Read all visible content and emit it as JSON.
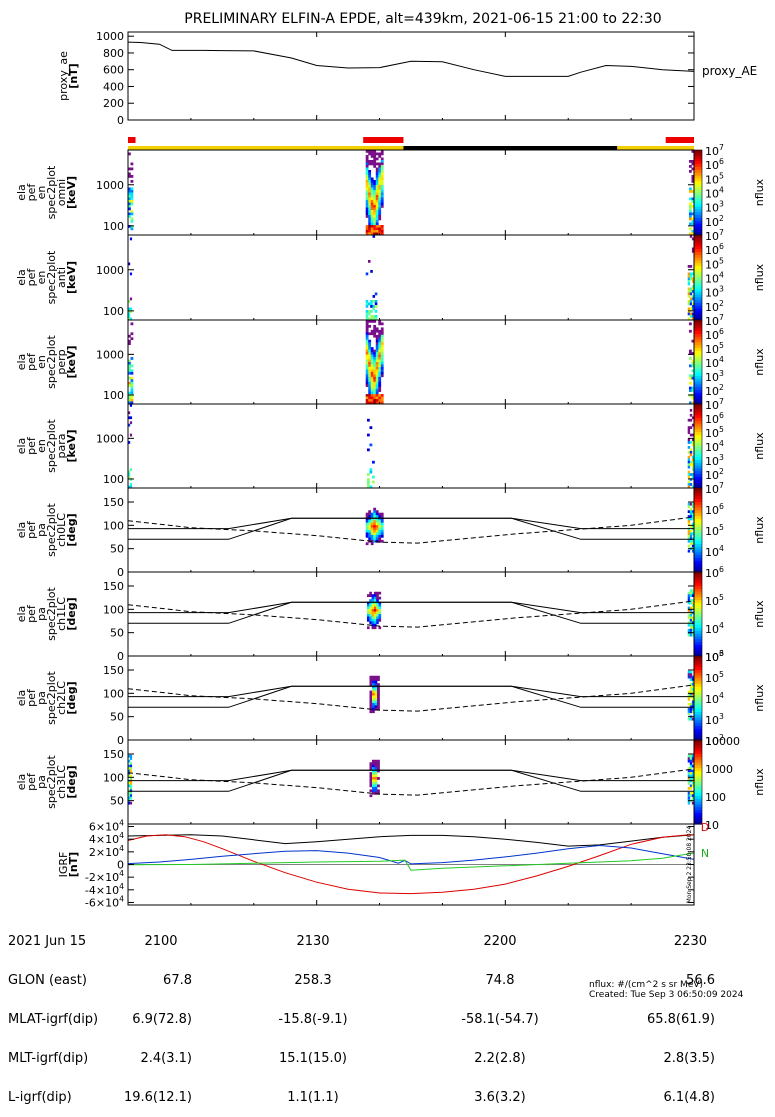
{
  "title": "PRELIMINARY ELFIN-A EPDE, alt=439km, 2021-06-15 21:00 to 22:30",
  "time_ticks": [
    0,
    30,
    60,
    90
  ],
  "chart_data": [
    {
      "type": "line",
      "ylabel": [
        "proxy_ae",
        "[nT]"
      ],
      "ylim": [
        0,
        1050
      ],
      "yticks": [
        "0",
        "200",
        "400",
        "600",
        "800",
        "1000"
      ],
      "ytick_values": [
        0,
        200,
        400,
        600,
        800,
        1000
      ],
      "legend": "proxy_AE",
      "series": [
        {
          "name": "proxy_AE",
          "color": "#000000",
          "x": [
            0,
            2,
            5,
            7,
            12,
            15,
            20,
            26,
            30,
            35,
            40,
            45,
            50,
            55,
            60,
            65,
            70,
            72,
            76,
            80,
            85,
            90
          ],
          "y": [
            930,
            925,
            905,
            830,
            830,
            828,
            825,
            740,
            650,
            620,
            625,
            700,
            695,
            600,
            520,
            520,
            520,
            570,
            650,
            640,
            600,
            580
          ]
        }
      ]
    },
    {
      "type": "strip",
      "series": [
        {
          "name": "red",
          "color": "#ee0000",
          "segments": [
            [
              0,
              1.2
            ],
            [
              37.4,
              43.8
            ],
            [
              85.5,
              90
            ]
          ]
        },
        {
          "name": "status",
          "segments": [
            {
              "color": "#f5d000",
              "range": [
                0,
                43.8
              ]
            },
            {
              "color": "#000000",
              "range": [
                43.8,
                77.8
              ]
            },
            {
              "color": "#f5d000",
              "range": [
                77.8,
                90
              ]
            }
          ]
        }
      ]
    },
    {
      "type": "heatmap",
      "ylabel": [
        "ela",
        "pef",
        "en",
        "spec2plot",
        "omni",
        "[keV]"
      ],
      "ylog": true,
      "ylim": [
        60,
        7000
      ],
      "yticks": [
        "100",
        "1000"
      ],
      "ytick_values": [
        100,
        1000
      ],
      "colorbar": {
        "label": "nflux",
        "log": true,
        "range": [
          10,
          10000000
        ],
        "ticks": [
          {
            "b": "10",
            "e": "7"
          },
          {
            "b": "10",
            "e": "6"
          },
          {
            "b": "10",
            "e": "5"
          },
          {
            "b": "10",
            "e": "4"
          },
          {
            "b": "10",
            "e": "3"
          },
          {
            "b": "10",
            "e": "2"
          }
        ]
      },
      "bursts": [
        {
          "x": [
            37.8,
            40.6
          ],
          "style": "energy"
        },
        {
          "x": [
            0,
            0.8
          ],
          "style": "energy-weak"
        },
        {
          "x": [
            89.2,
            90
          ],
          "style": "energy-weak"
        }
      ]
    },
    {
      "type": "heatmap",
      "ylabel": [
        "ela",
        "pef",
        "en",
        "spec2plot",
        "anti",
        "[keV]"
      ],
      "ylog": true,
      "ylim": [
        60,
        7000
      ],
      "yticks": [
        "100",
        "1000"
      ],
      "ytick_values": [
        100,
        1000
      ],
      "colorbar": {
        "label": "nflux",
        "log": true,
        "range": [
          10,
          10000000
        ],
        "ticks": [
          {
            "b": "10",
            "e": "7"
          },
          {
            "b": "10",
            "e": "6"
          },
          {
            "b": "10",
            "e": "5"
          },
          {
            "b": "10",
            "e": "4"
          },
          {
            "b": "10",
            "e": "3"
          },
          {
            "b": "10",
            "e": "2"
          }
        ]
      },
      "bursts": [
        {
          "x": [
            37.8,
            39.6
          ],
          "style": "sparse"
        },
        {
          "x": [
            0,
            0.6
          ],
          "style": "sparse"
        },
        {
          "x": [
            89.0,
            90
          ],
          "style": "energy-weak"
        }
      ]
    },
    {
      "type": "heatmap",
      "ylabel": [
        "ela",
        "pef",
        "en",
        "spec2plot",
        "perp",
        "[keV]"
      ],
      "ylog": true,
      "ylim": [
        60,
        7000
      ],
      "yticks": [
        "100",
        "1000"
      ],
      "ytick_values": [
        100,
        1000
      ],
      "colorbar": {
        "label": "nflux",
        "log": true,
        "range": [
          10,
          10000000
        ],
        "ticks": [
          {
            "b": "10",
            "e": "7"
          },
          {
            "b": "10",
            "e": "6"
          },
          {
            "b": "10",
            "e": "5"
          },
          {
            "b": "10",
            "e": "4"
          },
          {
            "b": "10",
            "e": "3"
          },
          {
            "b": "10",
            "e": "2"
          }
        ]
      },
      "bursts": [
        {
          "x": [
            37.8,
            40.6
          ],
          "style": "energy"
        },
        {
          "x": [
            0,
            0.8
          ],
          "style": "energy-weak"
        },
        {
          "x": [
            89.2,
            90
          ],
          "style": "energy-weak"
        }
      ]
    },
    {
      "type": "heatmap",
      "ylabel": [
        "ela",
        "pef",
        "en",
        "spec2plot",
        "para",
        "[keV]"
      ],
      "ylog": true,
      "ylim": [
        60,
        7000
      ],
      "yticks": [
        "100",
        "1000"
      ],
      "ytick_values": [
        100,
        1000
      ],
      "colorbar": {
        "label": "nflux",
        "log": true,
        "range": [
          10,
          10000000
        ],
        "ticks": [
          {
            "b": "10",
            "e": "7"
          },
          {
            "b": "10",
            "e": "6"
          },
          {
            "b": "10",
            "e": "5"
          },
          {
            "b": "10",
            "e": "4"
          },
          {
            "b": "10",
            "e": "3"
          },
          {
            "b": "10",
            "e": "2"
          }
        ]
      },
      "bursts": [
        {
          "x": [
            38.0,
            39.2
          ],
          "style": "sparse"
        },
        {
          "x": [
            0,
            0.6
          ],
          "style": "sparse"
        },
        {
          "x": [
            89.0,
            90
          ],
          "style": "energy-weak"
        }
      ]
    },
    {
      "type": "heatmap",
      "ylabel": [
        "ela",
        "pef",
        "pa",
        "spec2plot",
        "ch0LC",
        "[deg]"
      ],
      "ylim": [
        0,
        180
      ],
      "yticks": [
        "0",
        "50",
        "100",
        "150"
      ],
      "ytick_values": [
        0,
        50,
        100,
        150
      ],
      "colorbar": {
        "label": "nflux",
        "log": true,
        "range": [
          1000,
          10000000
        ],
        "ticks": [
          {
            "b": "10",
            "e": "7"
          },
          {
            "b": "10",
            "e": "6"
          },
          {
            "b": "10",
            "e": "5"
          },
          {
            "b": "10",
            "e": "4"
          }
        ]
      },
      "lines": "lc",
      "bursts": [
        {
          "x": [
            37.8,
            40.6
          ],
          "style": "pitch"
        },
        {
          "x": [
            89.0,
            90
          ],
          "style": "pitch-edge"
        }
      ]
    },
    {
      "type": "heatmap",
      "ylabel": [
        "ela",
        "pef",
        "pa",
        "spec2plot",
        "ch1LC",
        "[deg]"
      ],
      "ylim": [
        0,
        180
      ],
      "yticks": [
        "0",
        "50",
        "100",
        "150"
      ],
      "ytick_values": [
        0,
        50,
        100,
        150
      ],
      "colorbar": {
        "label": "nflux",
        "log": true,
        "range": [
          1000,
          1000000
        ],
        "ticks": [
          {
            "b": "10",
            "e": "6"
          },
          {
            "b": "10",
            "e": "5"
          },
          {
            "b": "10",
            "e": "4"
          },
          {
            "b": "10",
            "e": "3"
          }
        ]
      },
      "lines": "lc",
      "bursts": [
        {
          "x": [
            38.0,
            40.2
          ],
          "style": "pitch"
        },
        {
          "x": [
            89.0,
            90
          ],
          "style": "pitch-edge"
        }
      ]
    },
    {
      "type": "heatmap",
      "ylabel": [
        "ela",
        "pef",
        "pa",
        "spec2plot",
        "ch2LC",
        "[deg]"
      ],
      "ylim": [
        0,
        180
      ],
      "yticks": [
        "0",
        "50",
        "100",
        "150"
      ],
      "ytick_values": [
        0,
        50,
        100,
        150
      ],
      "colorbar": {
        "label": "nflux",
        "log": true,
        "range": [
          100,
          1000000
        ],
        "ticks": [
          {
            "b": "10",
            "e": "6"
          },
          {
            "b": "10",
            "e": "5"
          },
          {
            "b": "10",
            "e": "4"
          },
          {
            "b": "10",
            "e": "3"
          },
          {
            "b": "10",
            "e": "2"
          }
        ]
      },
      "lines": "lc",
      "bursts": [
        {
          "x": [
            38.4,
            40.0
          ],
          "style": "pitch-narrow"
        },
        {
          "x": [
            89.0,
            90
          ],
          "style": "pitch-edge"
        }
      ]
    },
    {
      "type": "heatmap",
      "ylabel": [
        "ela",
        "pef",
        "pa",
        "spec2plot",
        "ch3LC",
        "[deg]"
      ],
      "ylim": [
        0,
        180
      ],
      "yticks": [
        "50",
        "100",
        "150"
      ],
      "ytick_values": [
        50,
        100,
        150
      ],
      "colorbar": {
        "label": "nflux",
        "log": true,
        "range": [
          10,
          10000
        ],
        "ticks": [
          {
            "b": "10000",
            "e": ""
          },
          {
            "b": "1000",
            "e": ""
          },
          {
            "b": "100",
            "e": ""
          },
          {
            "b": "10",
            "e": ""
          }
        ]
      },
      "lines": "lc",
      "bursts": [
        {
          "x": [
            38.4,
            40.0
          ],
          "style": "pitch-narrow"
        },
        {
          "x": [
            0,
            0.6
          ],
          "style": "pitch-edge"
        },
        {
          "x": [
            89.0,
            90
          ],
          "style": "pitch-edge"
        }
      ]
    },
    {
      "type": "line",
      "ylabel": [
        "IGRF",
        "[nT]"
      ],
      "ylim": [
        -64000,
        64000
      ],
      "yticks": [
        {
          "b": "-6×10",
          "e": "4"
        },
        {
          "b": "-4×10",
          "e": "4"
        },
        {
          "b": "-2×10",
          "e": "4"
        },
        {
          "b": "0",
          "e": ""
        },
        {
          "b": "2×10",
          "e": "4"
        },
        {
          "b": "4×10",
          "e": "4"
        },
        {
          "b": "6×10",
          "e": "4"
        }
      ],
      "ytick_values": [
        -60000,
        -40000,
        -20000,
        0,
        20000,
        40000,
        60000
      ],
      "side_label": "Mon Sep  2 23:50:08 2024",
      "legend_labels": [
        "D",
        "N"
      ],
      "series": [
        {
          "name": "total",
          "color": "#000000",
          "x": [
            0,
            5,
            10,
            15,
            20,
            25,
            30,
            35,
            40,
            45,
            50,
            55,
            60,
            65,
            70,
            75,
            80,
            85,
            90
          ],
          "y": [
            45000,
            46000,
            47000,
            45000,
            39000,
            33000,
            36000,
            40000,
            44000,
            46000,
            46000,
            44000,
            40000,
            35000,
            29000,
            31000,
            37000,
            43000,
            47000
          ]
        },
        {
          "name": "red",
          "color": "#dd0000",
          "x": [
            0,
            3,
            6,
            9,
            12,
            15,
            20,
            25,
            30,
            35,
            40,
            45,
            50,
            55,
            60,
            65,
            70,
            75,
            80,
            85,
            88,
            90
          ],
          "y": [
            38000,
            45000,
            47000,
            44000,
            36000,
            25000,
            5000,
            -13000,
            -28000,
            -39000,
            -45000,
            -46000,
            -44000,
            -39000,
            -31000,
            -18000,
            -3000,
            14000,
            32000,
            43000,
            46000,
            47000
          ]
        },
        {
          "name": "blue",
          "color": "#0033cc",
          "x": [
            0,
            5,
            10,
            15,
            20,
            25,
            30,
            35,
            40,
            43,
            44,
            45,
            50,
            55,
            60,
            65,
            70,
            75,
            80,
            85,
            90
          ],
          "y": [
            1500,
            4000,
            8000,
            13000,
            17000,
            21000,
            22000,
            18000,
            11000,
            2000,
            6500,
            1000,
            3000,
            7000,
            12000,
            18000,
            25000,
            30000,
            26000,
            17000,
            8000
          ]
        },
        {
          "name": "green",
          "color": "#22cc22",
          "x": [
            0,
            10,
            20,
            30,
            40,
            44,
            45,
            50,
            60,
            70,
            80,
            85,
            88,
            90
          ],
          "y": [
            -500,
            0,
            2000,
            4000,
            5000,
            7000,
            -9000,
            -6000,
            -2000,
            2000,
            6000,
            10000,
            15000,
            18000
          ]
        }
      ]
    }
  ],
  "footer": {
    "col_time": [
      "2021 Jun 15",
      "GLON (east)",
      "MLAT-igrf(dip)",
      "MLT-igrf(dip)",
      "L-igrf(dip)"
    ],
    "t2100": [
      "2100",
      "67.8",
      "6.9(72.8)",
      "2.4(3.1)",
      "19.6(12.1)"
    ],
    "t2130": [
      "2130",
      "258.3",
      "-15.8(-9.1)",
      "15.1(15.0)",
      "1.1(1.1)"
    ],
    "t2200": [
      "2200",
      "74.8",
      "-58.1(-54.7)",
      "2.2(2.8)",
      "3.6(3.2)"
    ],
    "t2230": [
      "2230",
      "56.6",
      "65.8(61.9)",
      "2.8(3.5)",
      "6.1(4.8)"
    ],
    "nflux_units": "nflux: #/(cm^2 s sr MeV)",
    "created": "Created: Tue Sep  3 06:50:09 2024"
  }
}
